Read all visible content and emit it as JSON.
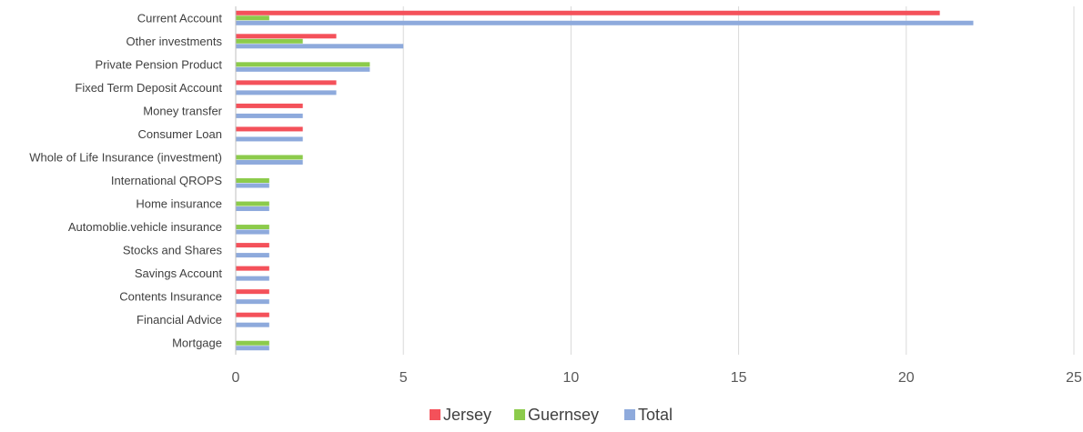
{
  "chart_data": {
    "type": "bar",
    "orientation": "horizontal",
    "title": "",
    "xlabel": "",
    "ylabel": "",
    "categories": [
      "Current Account",
      "Other investments",
      "Private Pension Product",
      "Fixed Term Deposit Account",
      "Money transfer",
      "Consumer Loan",
      "Whole of Life Insurance (investment)",
      "International QROPS",
      "Home insurance",
      "Automoblie.vehicle insurance",
      "Stocks and Shares",
      "Savings Account",
      "Contents Insurance",
      "Financial Advice",
      "Mortgage"
    ],
    "series": [
      {
        "name": "Jersey",
        "color": "#f4515a",
        "values": [
          21,
          3,
          0,
          3,
          2,
          2,
          0,
          0,
          0,
          0,
          1,
          1,
          1,
          1,
          0
        ]
      },
      {
        "name": "Guernsey",
        "color": "#8ccb4b",
        "values": [
          1,
          2,
          4,
          0,
          0,
          0,
          2,
          1,
          1,
          1,
          0,
          0,
          0,
          0,
          1
        ]
      },
      {
        "name": "Total",
        "color": "#8eaadc",
        "values": [
          22,
          5,
          4,
          3,
          2,
          2,
          2,
          1,
          1,
          1,
          1,
          1,
          1,
          1,
          1
        ]
      }
    ],
    "xlim": [
      0,
      25
    ],
    "xticks": [
      "0",
      "5",
      "10",
      "15",
      "20",
      "25"
    ],
    "grid": "vertical",
    "gridline_color": "#d9d9d9",
    "legend_position": "bottom"
  }
}
